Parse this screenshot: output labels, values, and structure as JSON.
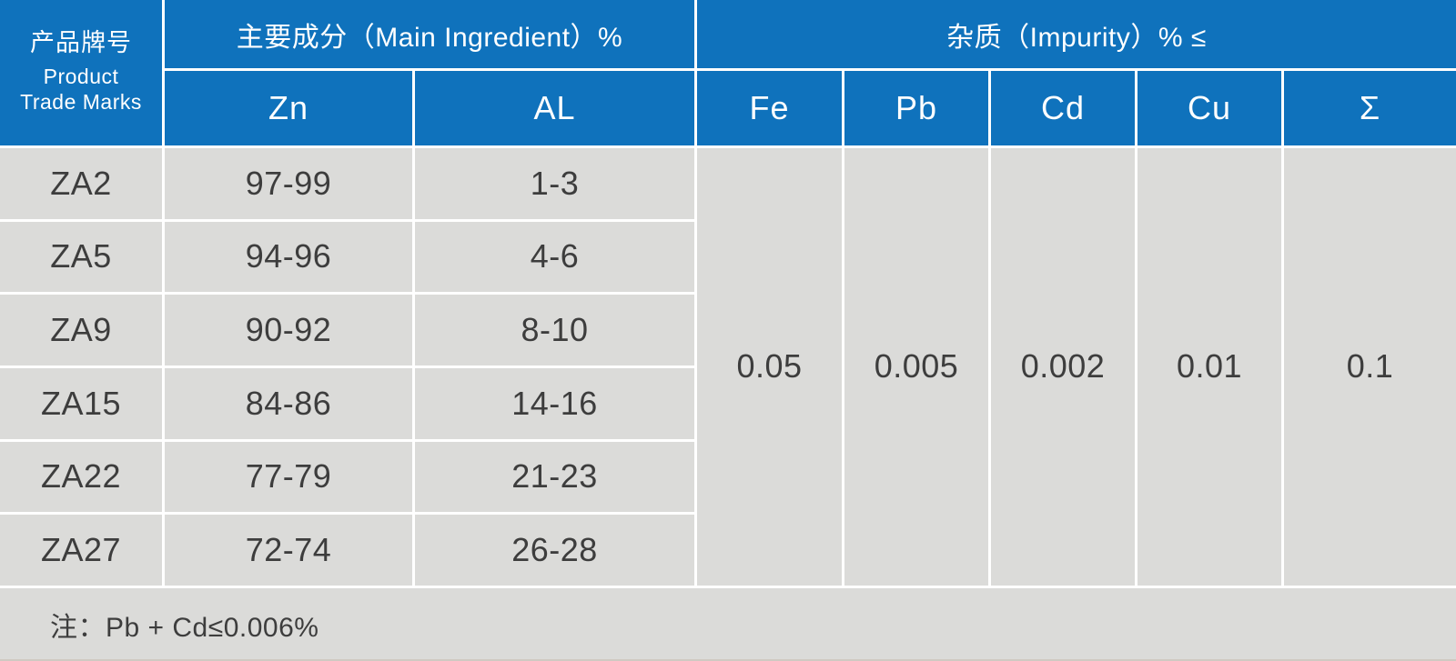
{
  "table": {
    "header": {
      "product_col": {
        "zh": "产品牌号",
        "en_line1": "Product",
        "en_line2": "Trade Marks"
      },
      "main_group": "主要成分（Main Ingredient）%",
      "impurity_group": "杂质（Impurity）% ≤",
      "main_cols": [
        "Zn",
        "AL"
      ],
      "impurity_cols": [
        "Fe",
        "Pb",
        "Cd",
        "Cu",
        "Σ"
      ]
    },
    "rows": [
      {
        "mark": "ZA2",
        "zn": "97-99",
        "al": "1-3"
      },
      {
        "mark": "ZA5",
        "zn": "94-96",
        "al": "4-6"
      },
      {
        "mark": "ZA9",
        "zn": "90-92",
        "al": "8-10"
      },
      {
        "mark": "ZA15",
        "zn": "84-86",
        "al": "14-16"
      },
      {
        "mark": "ZA22",
        "zn": "77-79",
        "al": "21-23"
      },
      {
        "mark": "ZA27",
        "zn": "72-74",
        "al": "26-28"
      }
    ],
    "impurity_values": [
      "0.05",
      "0.005",
      "0.002",
      "0.01",
      "0.1"
    ],
    "note": "注：Pb + Cd≤0.006%"
  },
  "colors": {
    "header_blue": "#0F72BC",
    "cell_gray": "#DBDBD9",
    "divider_white": "#FFFFFF",
    "text_dark": "#3D3D3D",
    "text_white": "#FFFFFF",
    "bottom_edge": "#CFC9C2"
  }
}
